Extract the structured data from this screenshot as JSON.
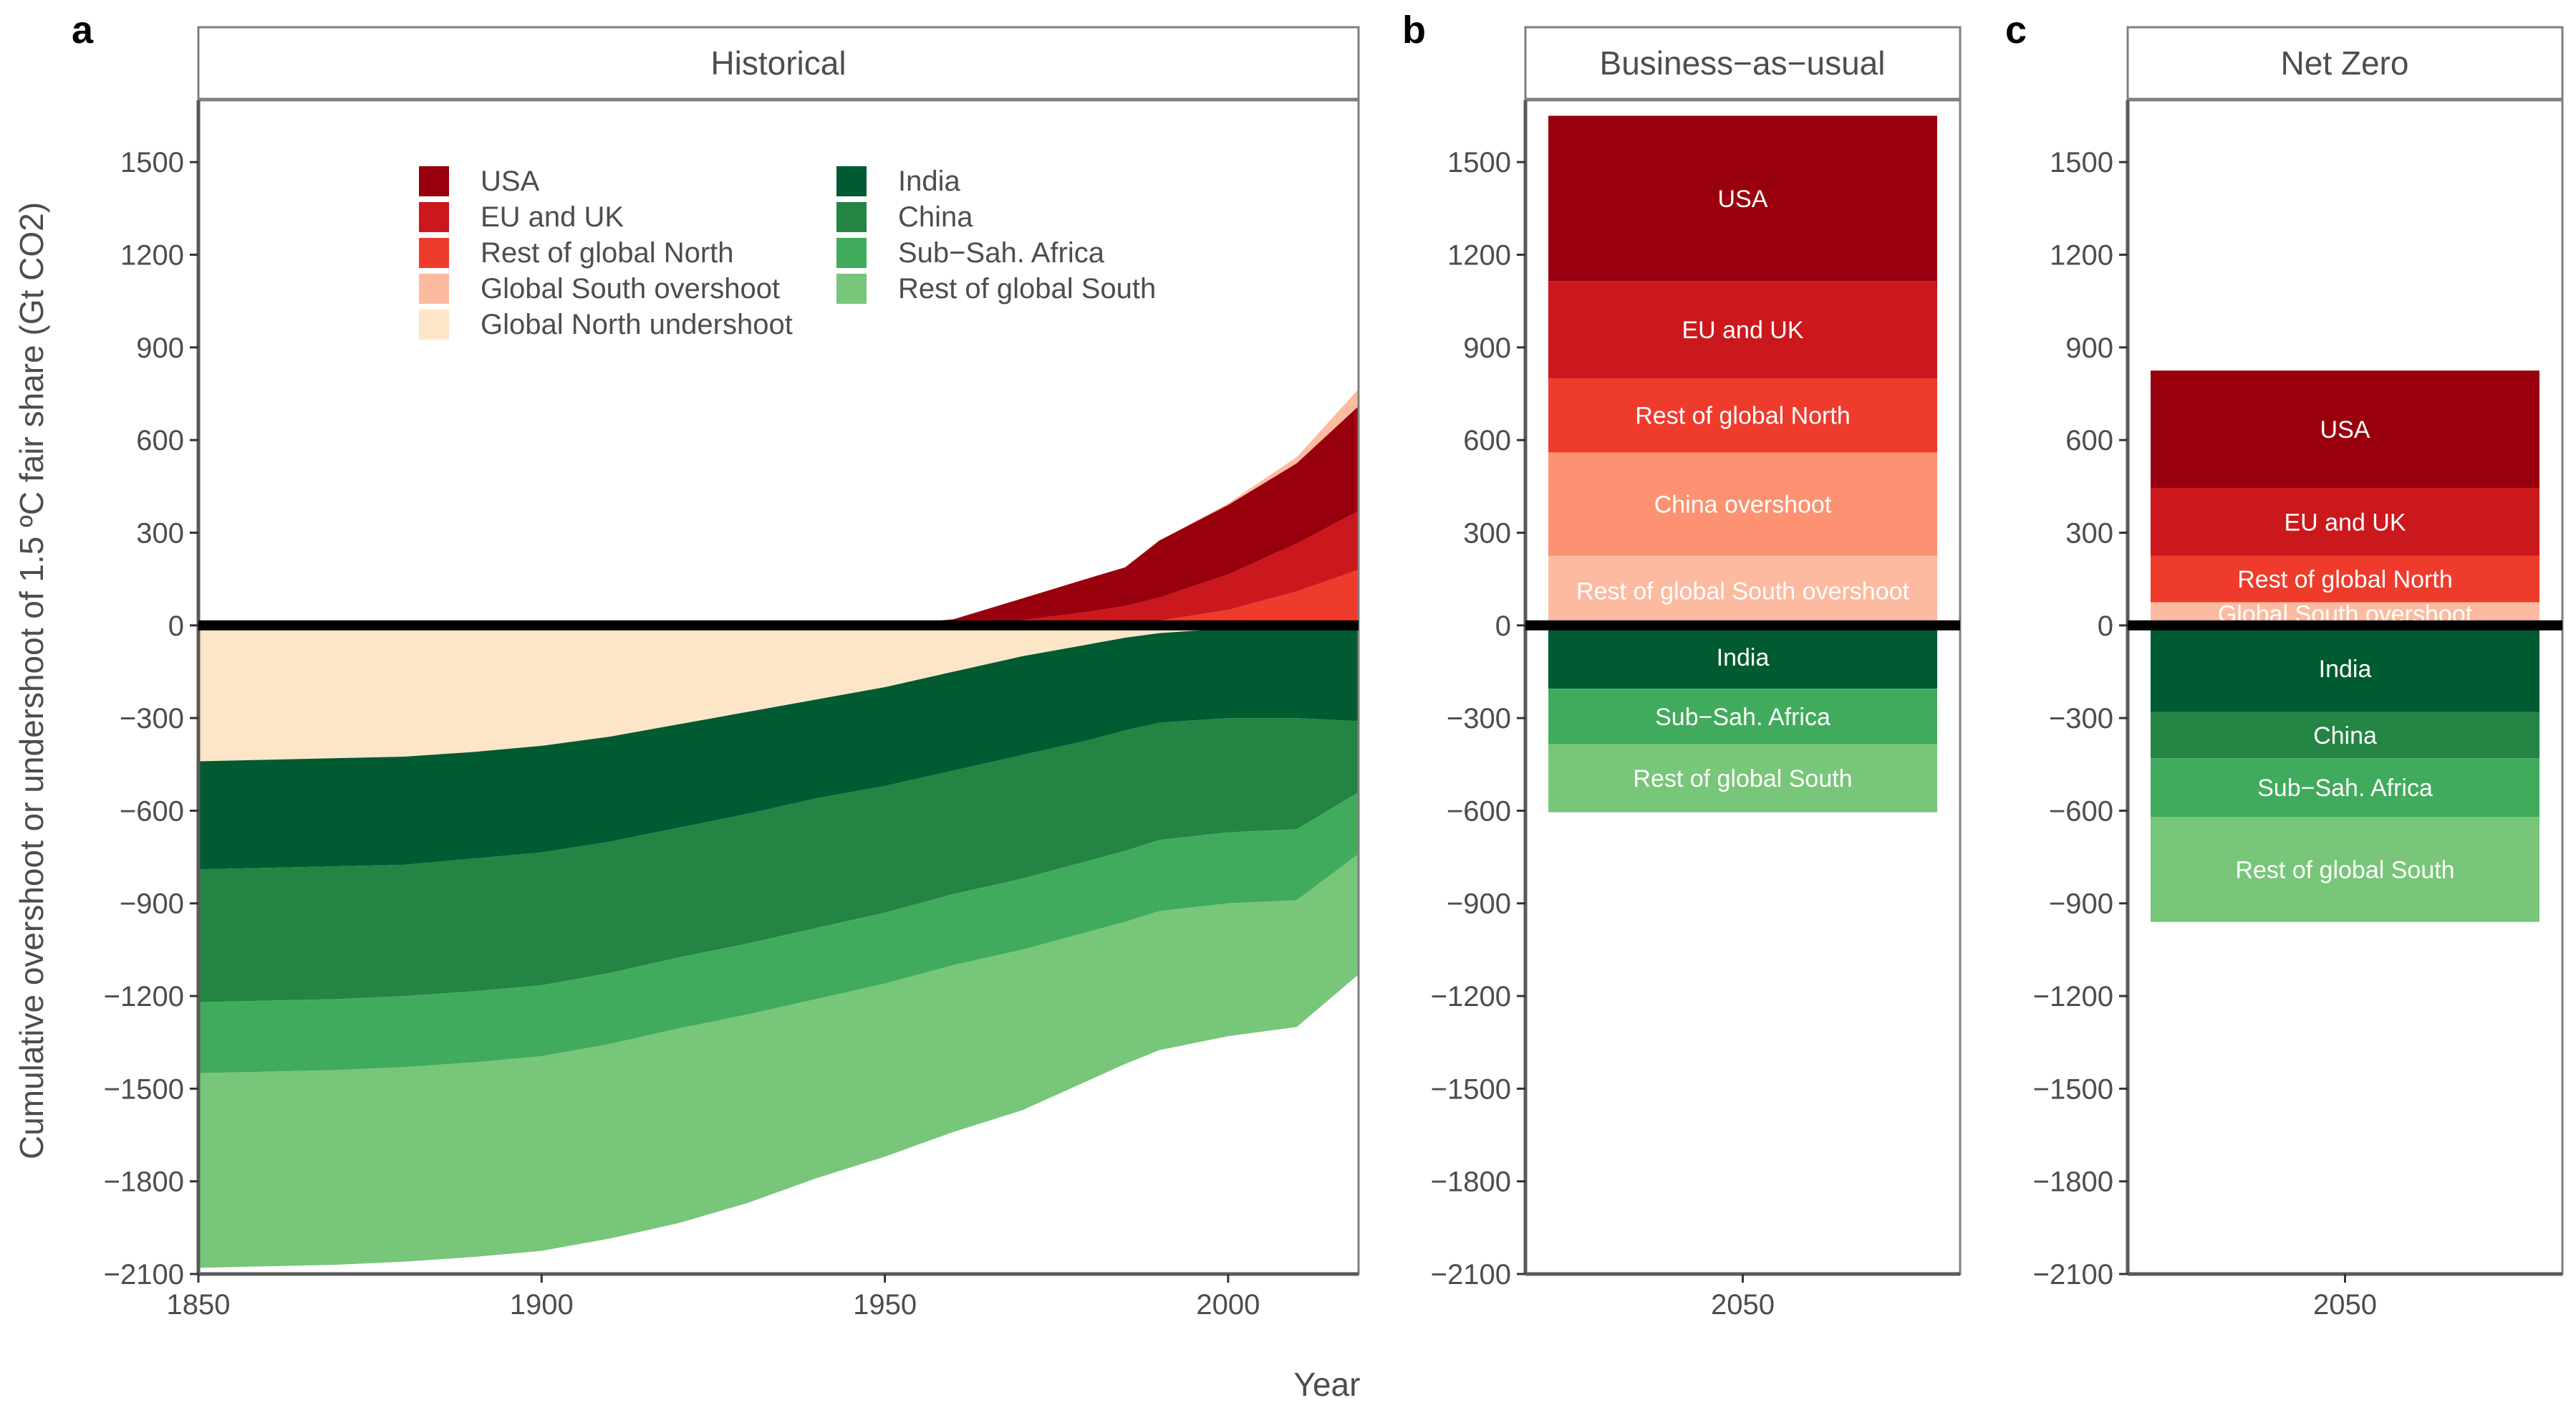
{
  "figure": {
    "panel_tags": [
      "a",
      "b",
      "c"
    ],
    "y_axis_title": "Cumulative overshoot or undershoot of 1.5 ºC fair share (Gt CO2)",
    "x_axis_title": "Year"
  },
  "colors": {
    "USA": "#99000d",
    "EU and UK": "#cb181d",
    "Rest of global North": "#ef3b2c",
    "China overshoot": "#fc9272",
    "Global South overshoot": "#fcbba1",
    "Rest of global South overshoot": "#fcbba1",
    "Global North undershoot": "#fde6c8",
    "India": "#005a32",
    "China": "#238443",
    "Sub-Sah. Africa": "#41ab5d",
    "Rest of global South": "#78c679"
  },
  "legend": {
    "col1": [
      "USA",
      "EU and UK",
      "Rest of global North",
      "Global South overshoot",
      "Global North undershoot"
    ],
    "col2": [
      "India",
      "China",
      "Sub−Sah. Africa",
      "Rest of global South"
    ]
  },
  "chart_data": [
    {
      "type": "area",
      "panel": "a",
      "title": "Historical",
      "xlabel": "Year",
      "ylabel": "Cumulative overshoot or undershoot of 1.5 ºC fair share (Gt CO2)",
      "xlim": [
        1850,
        2019
      ],
      "ylim": [
        -2100,
        1700
      ],
      "x_ticks": [
        1850,
        1900,
        1950,
        2000
      ],
      "y_ticks": [
        1500,
        1200,
        900,
        600,
        300,
        0,
        -300,
        -600,
        -900,
        -1200,
        -1500,
        -1800,
        -2100
      ],
      "x": [
        1850,
        1870,
        1880,
        1890,
        1900,
        1910,
        1920,
        1930,
        1940,
        1950,
        1960,
        1970,
        1980,
        1985,
        1990,
        2000,
        2010,
        2019
      ],
      "positive_series": [
        {
          "name": "Rest of global North",
          "values": [
            0,
            0,
            0,
            0,
            0,
            0,
            0,
            0,
            0,
            0,
            0,
            2,
            5,
            8,
            15,
            50,
            110,
            180
          ]
        },
        {
          "name": "EU and UK",
          "values": [
            0,
            0,
            0,
            0,
            0,
            0,
            0,
            0,
            0,
            0,
            0,
            15,
            40,
            55,
            75,
            115,
            155,
            190
          ]
        },
        {
          "name": "USA",
          "values": [
            0,
            0,
            0,
            0,
            0,
            0,
            0,
            0,
            0,
            0,
            20,
            70,
            110,
            125,
            185,
            225,
            260,
            340
          ]
        },
        {
          "name": "Global South overshoot",
          "values": [
            0,
            0,
            0,
            0,
            0,
            0,
            0,
            0,
            0,
            0,
            0,
            0,
            0,
            0,
            0,
            5,
            20,
            55
          ]
        }
      ],
      "negative_series": [
        {
          "name": "Global North undershoot",
          "values": [
            -440,
            -430,
            -425,
            -410,
            -390,
            -360,
            -320,
            -280,
            -240,
            -200,
            -150,
            -100,
            -60,
            -40,
            -25,
            -10,
            -5,
            0
          ]
        },
        {
          "name": "India",
          "values": [
            -350,
            -350,
            -350,
            -345,
            -345,
            -340,
            -335,
            -330,
            -320,
            -320,
            -320,
            -320,
            -310,
            -300,
            -290,
            -290,
            -295,
            -310
          ]
        },
        {
          "name": "China",
          "values": [
            -430,
            -430,
            -425,
            -430,
            -430,
            -425,
            -420,
            -420,
            -420,
            -410,
            -400,
            -400,
            -390,
            -390,
            -380,
            -370,
            -360,
            -230
          ]
        },
        {
          "name": "Sub-Sah. Africa",
          "values": [
            -230,
            -230,
            -230,
            -230,
            -230,
            -230,
            -230,
            -230,
            -230,
            -230,
            -230,
            -230,
            -230,
            -230,
            -230,
            -230,
            -230,
            -200
          ]
        },
        {
          "name": "Rest of global South",
          "values": [
            -630,
            -630,
            -630,
            -630,
            -630,
            -630,
            -630,
            -610,
            -580,
            -560,
            -540,
            -520,
            -480,
            -460,
            -450,
            -430,
            -410,
            -390
          ]
        }
      ]
    },
    {
      "type": "bar",
      "panel": "b",
      "title": "Business−as−usual",
      "categories": [
        "2050"
      ],
      "ylim": [
        -2100,
        1700
      ],
      "y_ticks": [
        1500,
        1200,
        900,
        600,
        300,
        0,
        -300,
        -600,
        -900,
        -1200,
        -1500,
        -1800,
        -2100
      ],
      "positive_series": [
        {
          "name": "Rest of global South overshoot",
          "label": "Rest of global South overshoot",
          "values": [
            225
          ]
        },
        {
          "name": "China overshoot",
          "label": "China overshoot",
          "values": [
            335
          ]
        },
        {
          "name": "Rest of global North",
          "label": "Rest of global North",
          "values": [
            240
          ]
        },
        {
          "name": "EU and UK",
          "label": "EU and UK",
          "values": [
            315
          ]
        },
        {
          "name": "USA",
          "label": "USA",
          "values": [
            535
          ]
        }
      ],
      "negative_series": [
        {
          "name": "India",
          "label": "India",
          "values": [
            -205
          ]
        },
        {
          "name": "Sub-Sah. Africa",
          "label": "Sub−Sah. Africa",
          "values": [
            -180
          ]
        },
        {
          "name": "Rest of global South",
          "label": "Rest of global South",
          "values": [
            -220
          ]
        }
      ]
    },
    {
      "type": "bar",
      "panel": "c",
      "title": "Net Zero",
      "categories": [
        "2050"
      ],
      "ylim": [
        -2100,
        1700
      ],
      "y_ticks": [
        1500,
        1200,
        900,
        600,
        300,
        0,
        -300,
        -600,
        -900,
        -1200,
        -1500,
        -1800,
        -2100
      ],
      "positive_series": [
        {
          "name": "Global South overshoot",
          "label": "Global South overshoot",
          "values": [
            75
          ]
        },
        {
          "name": "Rest of global North",
          "label": "Rest of global North",
          "values": [
            150
          ]
        },
        {
          "name": "EU and UK",
          "label": "EU and UK",
          "values": [
            220
          ]
        },
        {
          "name": "USA",
          "label": "USA",
          "values": [
            380
          ]
        }
      ],
      "negative_series": [
        {
          "name": "India",
          "label": "India",
          "values": [
            -280
          ]
        },
        {
          "name": "China",
          "label": "China",
          "values": [
            -150
          ]
        },
        {
          "name": "Sub-Sah. Africa",
          "label": "Sub−Sah. Africa",
          "values": [
            -190
          ]
        },
        {
          "name": "Rest of global South",
          "label": "Rest of global South",
          "values": [
            -340
          ]
        }
      ]
    }
  ]
}
